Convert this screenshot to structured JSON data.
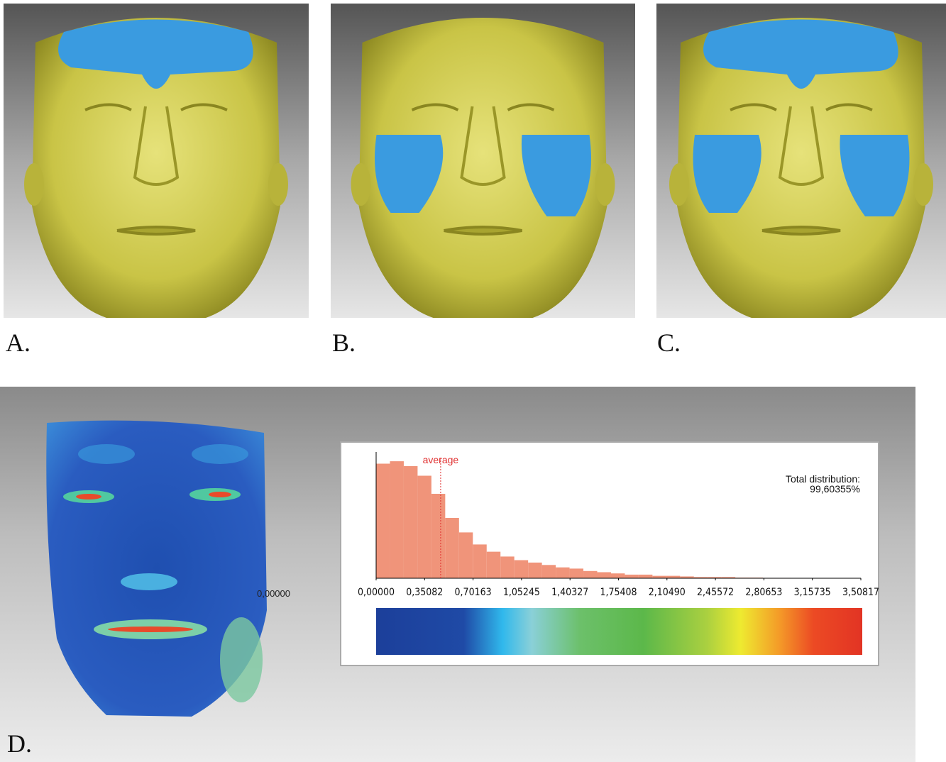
{
  "panels": [
    {
      "label": "A."
    },
    {
      "label": "B."
    },
    {
      "label": "C."
    },
    {
      "label": "D."
    }
  ],
  "face_scale_label": "0,00000",
  "chart_data": {
    "type": "histogram",
    "color": "#f0947a",
    "bins": [
      0,
      0.1,
      0.2,
      0.3,
      0.4,
      0.5,
      0.6,
      0.7,
      0.8,
      0.9,
      1.0,
      1.1,
      1.2,
      1.3,
      1.4,
      1.5,
      1.6,
      1.7,
      1.8,
      1.9,
      2.0,
      2.1,
      2.2,
      2.3,
      2.4,
      2.5,
      2.6,
      2.7,
      2.8,
      2.9,
      3.0,
      3.1,
      3.2,
      3.3,
      3.4,
      3.5
    ],
    "counts": [
      95,
      97,
      93,
      85,
      70,
      50,
      38,
      28,
      22,
      18,
      15,
      13,
      11,
      9,
      8,
      6,
      5,
      4,
      3,
      3,
      2,
      2,
      1.5,
      1,
      1,
      1,
      0.5,
      0.5,
      0.3,
      0.3,
      0.2,
      0.1,
      0.1,
      0,
      0
    ],
    "xlim": [
      0,
      3.50817
    ],
    "ylim": [
      0,
      100
    ],
    "xticks": [
      {
        "value": 0,
        "label": "0,00000"
      },
      {
        "value": 0.35082,
        "label": "0,35082"
      },
      {
        "value": 0.70163,
        "label": "0,70163"
      },
      {
        "value": 1.05245,
        "label": "1,05245"
      },
      {
        "value": 1.40327,
        "label": "1,40327"
      },
      {
        "value": 1.75408,
        "label": "1,75408"
      },
      {
        "value": 2.1049,
        "label": "2,10490"
      },
      {
        "value": 2.45572,
        "label": "2,45572"
      },
      {
        "value": 2.80653,
        "label": "2,80653"
      },
      {
        "value": 3.15735,
        "label": "3,15735"
      },
      {
        "value": 3.50817,
        "label": "3,50817"
      }
    ],
    "annotations": [
      {
        "text": "average",
        "x": 0.467,
        "color": "#e03030"
      }
    ],
    "total_text": [
      "Total distribution:",
      "99,60355%"
    ]
  }
}
